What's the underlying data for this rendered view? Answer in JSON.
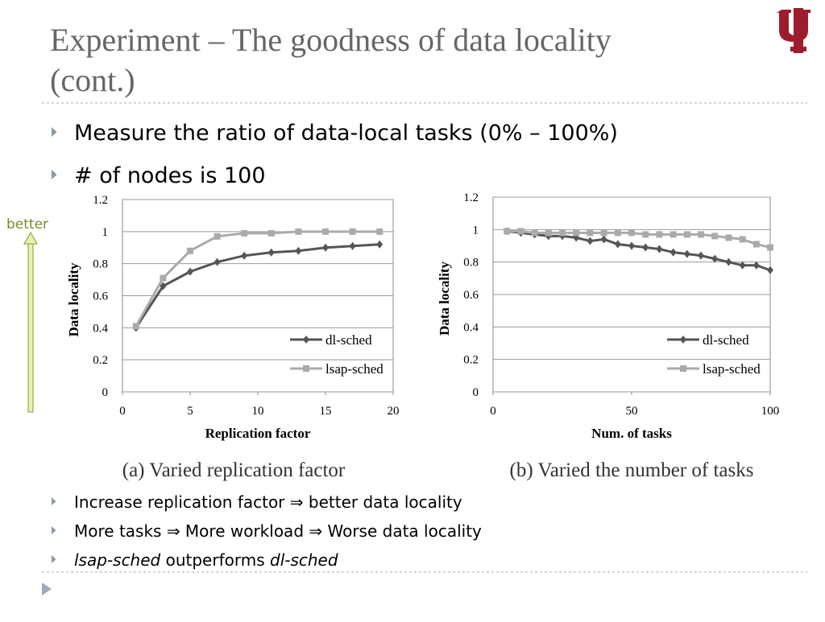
{
  "header": {
    "title": "Experiment – The goodness of data locality (cont.)"
  },
  "top_bullets": [
    "Measure the ratio of data-local tasks (0% – 100%)",
    "# of nodes is 100"
  ],
  "annotation": "better",
  "chart_data": [
    {
      "type": "line",
      "caption": "(a) Varied replication factor",
      "x_label": "Replication factor",
      "y_label": "Data locality",
      "x": [
        1,
        3,
        5,
        7,
        9,
        11,
        13,
        15,
        17,
        19
      ],
      "series": [
        {
          "name": "dl-sched",
          "color": "#555555",
          "marker": "diamond",
          "values": [
            0.4,
            0.66,
            0.75,
            0.81,
            0.85,
            0.87,
            0.88,
            0.9,
            0.91,
            0.92
          ]
        },
        {
          "name": "lsap-sched",
          "color": "#aaaaaa",
          "marker": "square",
          "values": [
            0.41,
            0.71,
            0.88,
            0.97,
            0.99,
            0.99,
            1.0,
            1.0,
            1.0,
            1.0
          ]
        }
      ],
      "xlim": [
        0,
        20
      ],
      "xticks": [
        0,
        5,
        10,
        15,
        20
      ],
      "ylim": [
        0,
        1.2
      ],
      "yticks": [
        0,
        0.2,
        0.4,
        0.6,
        0.8,
        1,
        1.2
      ],
      "grid": true,
      "legend": "lower right"
    },
    {
      "type": "line",
      "caption": "(b) Varied the number of tasks",
      "x_label": "Num. of tasks",
      "y_label": "Data locality",
      "x": [
        5,
        10,
        15,
        20,
        25,
        30,
        35,
        40,
        45,
        50,
        55,
        60,
        65,
        70,
        75,
        80,
        85,
        90,
        95,
        100
      ],
      "series": [
        {
          "name": "dl-sched",
          "color": "#555555",
          "marker": "diamond",
          "values": [
            0.99,
            0.98,
            0.97,
            0.96,
            0.96,
            0.95,
            0.93,
            0.94,
            0.91,
            0.9,
            0.89,
            0.88,
            0.86,
            0.85,
            0.84,
            0.82,
            0.8,
            0.78,
            0.78,
            0.75
          ]
        },
        {
          "name": "lsap-sched",
          "color": "#aaaaaa",
          "marker": "square",
          "values": [
            0.99,
            0.99,
            0.98,
            0.98,
            0.98,
            0.98,
            0.98,
            0.98,
            0.98,
            0.98,
            0.97,
            0.97,
            0.97,
            0.97,
            0.97,
            0.96,
            0.95,
            0.94,
            0.91,
            0.89
          ]
        }
      ],
      "xlim": [
        0,
        100
      ],
      "xticks": [
        0,
        50,
        100
      ],
      "ylim": [
        0,
        1.2
      ],
      "yticks": [
        0,
        0.2,
        0.4,
        0.6,
        0.8,
        1,
        1.2
      ],
      "grid": true,
      "legend": "lower right"
    }
  ],
  "bottom_bullets": [
    [
      {
        "text": "Increase replication factor ⇒ better data locality",
        "italic": false
      }
    ],
    [
      {
        "text": "More tasks ⇒ More workload ⇒ Worse data locality",
        "italic": false
      }
    ],
    [
      {
        "text": "lsap-sched",
        "italic": true
      },
      {
        "text": " outperforms ",
        "italic": false
      },
      {
        "text": "dl-sched",
        "italic": true
      }
    ]
  ]
}
